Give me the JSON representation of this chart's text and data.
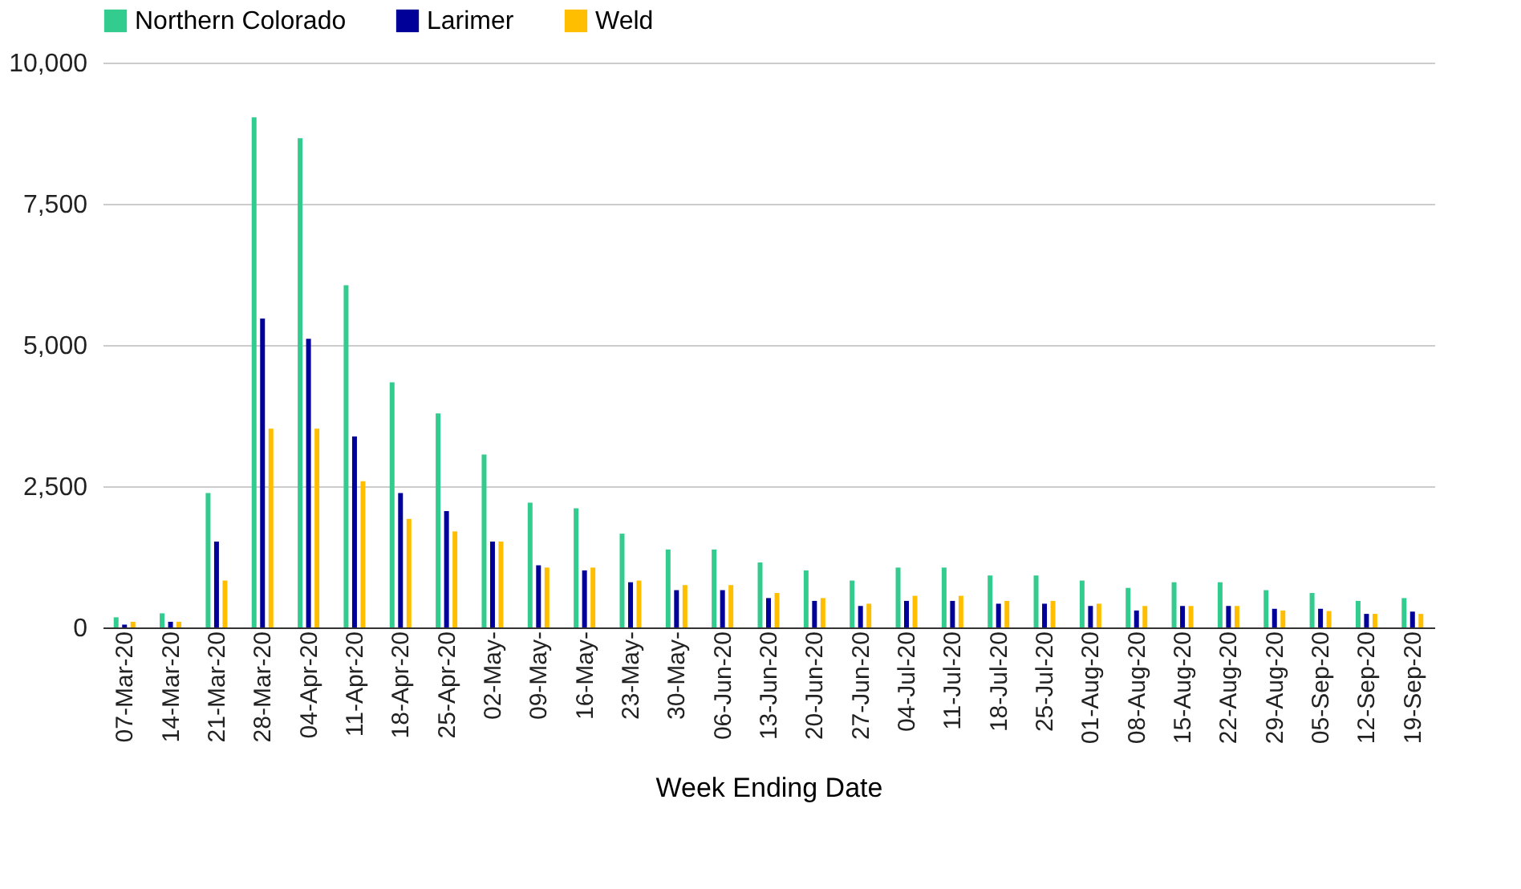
{
  "chart_data": {
    "type": "bar",
    "xlabel": "Week Ending Date",
    "categories": [
      "07-Mar-20",
      "14-Mar-20",
      "21-Mar-20",
      "28-Mar-20",
      "04-Apr-20",
      "11-Apr-20",
      "18-Apr-20",
      "25-Apr-20",
      "02-May-",
      "09-May-",
      "16-May-",
      "23-May-",
      "30-May-",
      "06-Jun-20",
      "13-Jun-20",
      "20-Jun-20",
      "27-Jun-20",
      "04-Jul-20",
      "11-Jul-20",
      "18-Jul-20",
      "25-Jul-20",
      "01-Aug-20",
      "08-Aug-20",
      "15-Aug-20",
      "22-Aug-20",
      "29-Aug-20",
      "05-Sep-20",
      "12-Sep-20",
      "19-Sep-20"
    ],
    "series": [
      {
        "name": "Northern Colorado",
        "color": "#33cc8f",
        "values": [
          180,
          250,
          2380,
          9030,
          8660,
          6060,
          4340,
          3790,
          3060,
          2210,
          2110,
          1660,
          1380,
          1380,
          1150,
          1010,
          830,
          1060,
          1060,
          920,
          920,
          830,
          700,
          800,
          800,
          660,
          610,
          470,
          520
        ]
      },
      {
        "name": "Larimer",
        "color": "#000099",
        "values": [
          50,
          100,
          1520,
          5470,
          5110,
          3380,
          2380,
          2060,
          1520,
          1100,
          1010,
          800,
          660,
          660,
          520,
          470,
          380,
          470,
          470,
          420,
          420,
          380,
          300,
          380,
          380,
          330,
          330,
          240,
          280
        ]
      },
      {
        "name": "Weld",
        "color": "#ffbf00",
        "values": [
          100,
          100,
          830,
          3520,
          3520,
          2590,
          1920,
          1700,
          1520,
          1060,
          1060,
          830,
          750,
          750,
          610,
          520,
          420,
          560,
          560,
          470,
          470,
          420,
          380,
          380,
          380,
          300,
          290,
          240,
          240
        ]
      }
    ],
    "ylim": [
      0,
      10000
    ],
    "yticks": [
      {
        "value": 0,
        "label": "0"
      },
      {
        "value": 2500,
        "label": "2,500"
      },
      {
        "value": 5000,
        "label": "5,000"
      },
      {
        "value": 7500,
        "label": "7,500"
      },
      {
        "value": 10000,
        "label": "10,000"
      }
    ],
    "grid": "y",
    "legend": "top"
  }
}
